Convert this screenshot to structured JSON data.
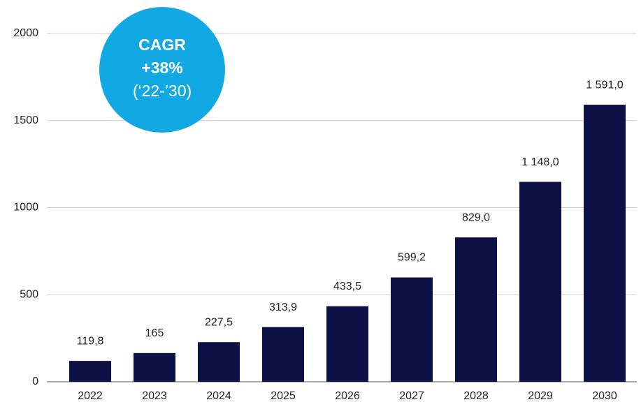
{
  "chart_data": {
    "type": "bar",
    "categories": [
      "2022",
      "2023",
      "2024",
      "2025",
      "2026",
      "2027",
      "2028",
      "2029",
      "2030"
    ],
    "values": [
      119.8,
      165,
      227.5,
      313.9,
      433.5,
      599.2,
      829.0,
      1148.0,
      1591.0
    ],
    "value_labels": [
      "119,8",
      "165",
      "227,5",
      "313,9",
      "433,5",
      "599,2",
      "829,0",
      "1 148,0",
      "1 591,0"
    ],
    "color": "#0e1145",
    "ylim": [
      0,
      2000
    ],
    "yticks": [
      0,
      500,
      1000,
      1500,
      2000
    ],
    "grid": true,
    "annotation": {
      "lines": [
        "CAGR",
        "+38%",
        "(‘22-’30)"
      ],
      "color": "#12a8e3"
    }
  }
}
